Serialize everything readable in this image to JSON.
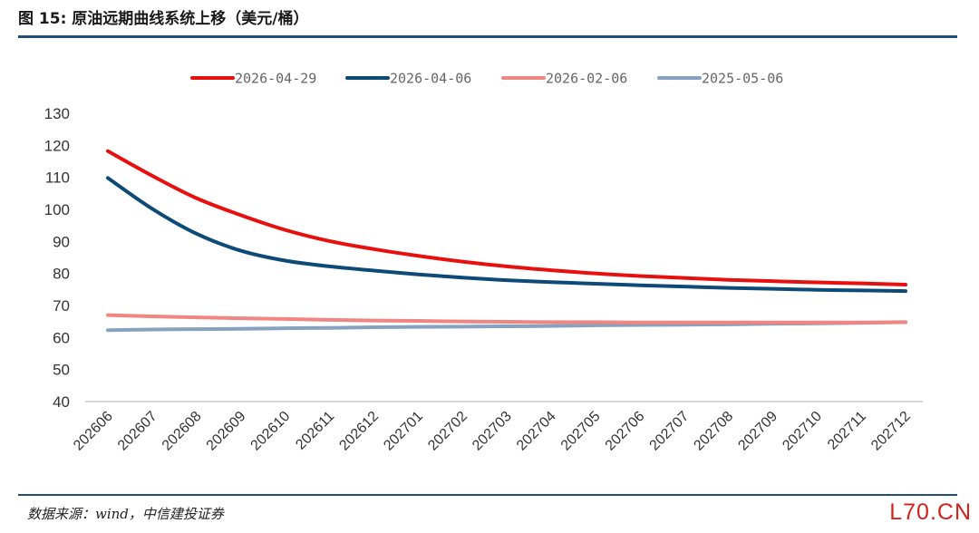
{
  "header": {
    "title": "图 15: 原油远期曲线系统上移（美元/桶）"
  },
  "footer": {
    "source": "数据来源：wind，中信建投证券",
    "watermark": "L70.CN"
  },
  "chart_data": {
    "type": "line",
    "title": "",
    "xlabel": "",
    "ylabel": "",
    "ylim": [
      40,
      130
    ],
    "yticks": [
      40,
      50,
      60,
      70,
      80,
      90,
      100,
      110,
      120,
      130
    ],
    "grid": false,
    "legend_position": "top",
    "categories": [
      "202606",
      "202607",
      "202608",
      "202609",
      "202610",
      "202611",
      "202612",
      "202701",
      "202702",
      "202703",
      "202704",
      "202705",
      "202706",
      "202707",
      "202708",
      "202709",
      "202710",
      "202711",
      "202712"
    ],
    "series": [
      {
        "name": "2026-04-29",
        "color": "#e8100f",
        "values": [
          118.2,
          110.5,
          103.5,
          98.2,
          93.6,
          90.1,
          87.6,
          85.5,
          83.7,
          82.2,
          81.0,
          80.0,
          79.2,
          78.6,
          78.0,
          77.6,
          77.2,
          76.9,
          76.5
        ]
      },
      {
        "name": "2026-04-06",
        "color": "#0d4a77",
        "values": [
          109.8,
          100.2,
          92.4,
          87.1,
          84.0,
          82.2,
          80.9,
          79.7,
          78.7,
          77.9,
          77.3,
          76.8,
          76.3,
          75.9,
          75.5,
          75.2,
          74.9,
          74.7,
          74.5
        ]
      },
      {
        "name": "2026-02-06",
        "color": "#f08581",
        "values": [
          67.0,
          66.6,
          66.3,
          66.0,
          65.8,
          65.5,
          65.3,
          65.2,
          65.0,
          64.9,
          64.8,
          64.8,
          64.7,
          64.7,
          64.7,
          64.7,
          64.7,
          64.7,
          64.8
        ]
      },
      {
        "name": "2025-05-06",
        "color": "#87a2bf",
        "values": [
          62.3,
          62.5,
          62.6,
          62.7,
          62.9,
          63.0,
          63.2,
          63.3,
          63.4,
          63.5,
          63.6,
          63.8,
          63.9,
          64.0,
          64.1,
          64.3,
          64.4,
          64.6,
          64.8
        ]
      }
    ]
  }
}
